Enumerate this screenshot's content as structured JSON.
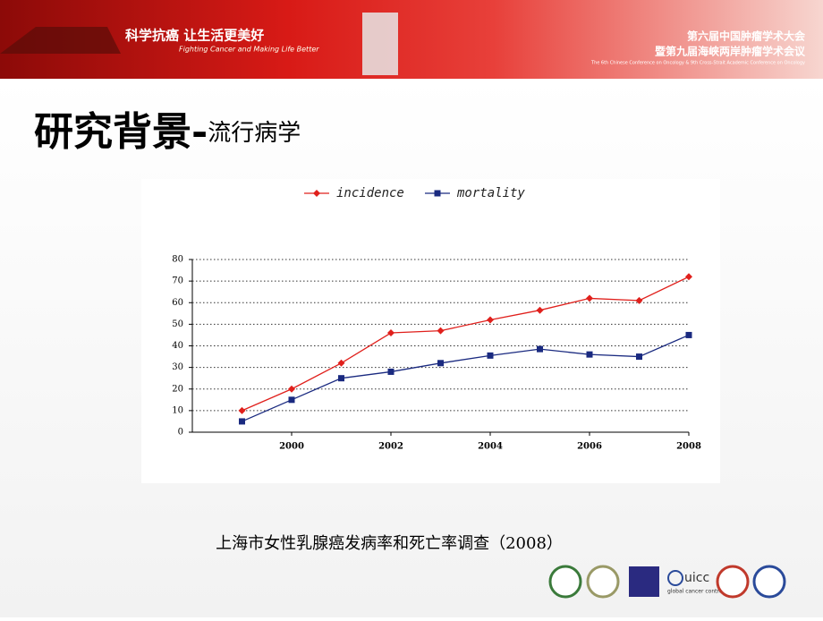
{
  "header": {
    "slogan": "科学抗癌  让生活更美好",
    "slogan_en": "Fighting Cancer and Making Life Better",
    "conference_1": "第六届中国肿瘤学术大会",
    "conference_2": "暨第九届海峡两岸肿瘤学术会议",
    "conference_en": "The 6th Chinese Conference on Oncology & 9th Cross-Strait Academic Conference on Oncology"
  },
  "slide_title": {
    "main": "研究背景-",
    "sub": "流行病学"
  },
  "caption": "上海市女性乳腺癌发病率和死亡率调查（2008）",
  "logos": {
    "uicc": "uicc",
    "uicc_sub": "global cancer control"
  },
  "chart_data": {
    "type": "line",
    "x": [
      1999,
      2000,
      2001,
      2002,
      2003,
      2004,
      2005,
      2006,
      2007,
      2008
    ],
    "series": [
      {
        "name": "incidence",
        "color": "#e0201c",
        "marker": "diamond",
        "values": [
          10,
          20,
          32,
          46,
          47,
          52,
          56.5,
          62,
          61,
          72
        ]
      },
      {
        "name": "mortality",
        "color": "#1a2a80",
        "marker": "square",
        "values": [
          5,
          15,
          25,
          28,
          32,
          35.5,
          38.5,
          36,
          35,
          45
        ]
      }
    ],
    "xlim": [
      1998,
      2008
    ],
    "xticks": [
      2000,
      2002,
      2004,
      2006,
      2008
    ],
    "ylim": [
      0,
      80
    ],
    "yticks": [
      0,
      10,
      20,
      30,
      40,
      50,
      60,
      70,
      80
    ],
    "grid": true,
    "legend": "top"
  }
}
